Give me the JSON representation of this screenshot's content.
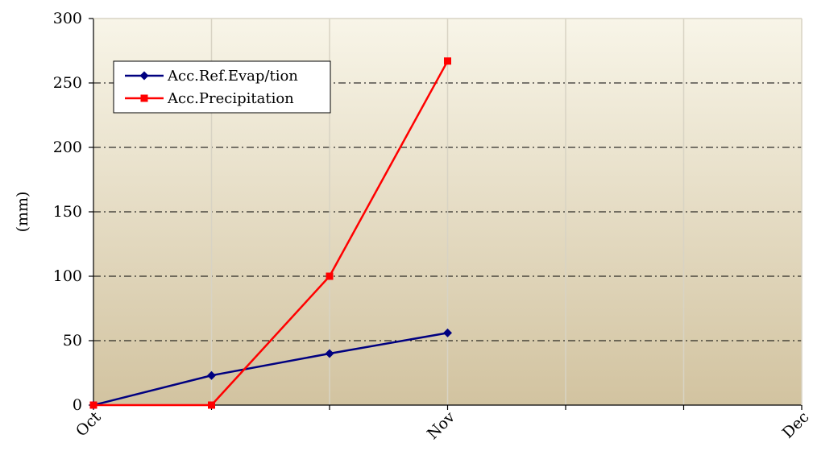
{
  "chart_data": {
    "type": "line",
    "ylabel": "(mm)",
    "ylim": [
      0,
      300
    ],
    "yticks": [
      0,
      50,
      100,
      150,
      200,
      250,
      300
    ],
    "xlim": [
      0,
      6
    ],
    "xtick_labels": [
      {
        "x": 0,
        "label": "Oct"
      },
      {
        "x": 3,
        "label": "Nov"
      },
      {
        "x": 6,
        "label": "Dec"
      }
    ],
    "vertical_gridlines_at": [
      1,
      2,
      3,
      4,
      5
    ],
    "horizontal_grid": true,
    "legend_position": "top-left",
    "background_gradient": [
      "#f8f5e8",
      "#d2c3a0"
    ],
    "series": [
      {
        "name": "Acc.Ref.Evap/tion",
        "color": "#000080",
        "marker": "diamond",
        "x": [
          0,
          1,
          2,
          3
        ],
        "values": [
          0,
          23,
          40,
          56
        ]
      },
      {
        "name": "Acc.Precipitation",
        "color": "#ff0000",
        "marker": "square",
        "x": [
          0,
          1,
          2,
          3
        ],
        "values": [
          0,
          0,
          100,
          267
        ]
      }
    ]
  }
}
